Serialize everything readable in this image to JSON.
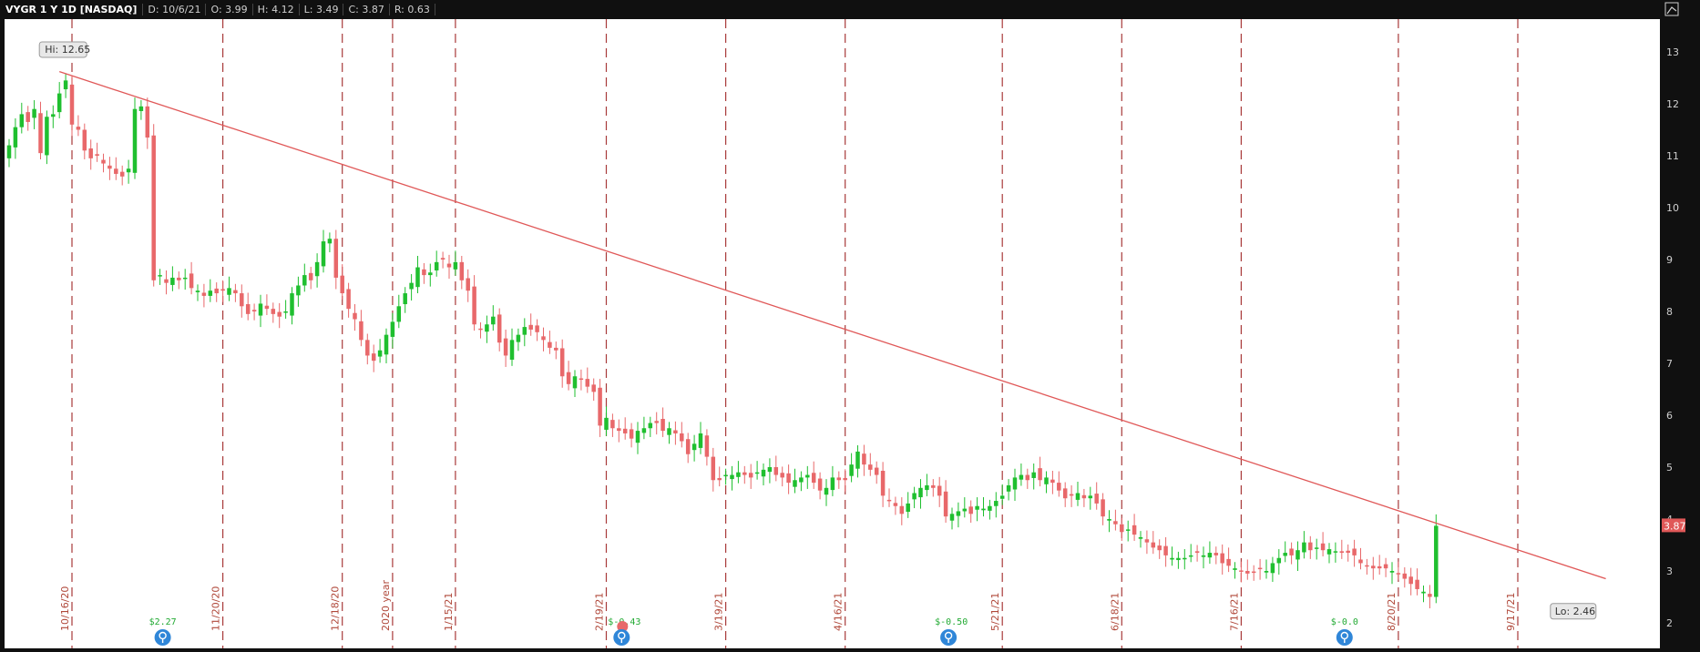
{
  "header": {
    "symbol": "VYGR 1 Y 1D [NASDAQ]",
    "date": "D: 10/6/21",
    "open": "O: 3.99",
    "high": "H: 4.12",
    "low": "L: 3.49",
    "close": "C: 3.87",
    "range": "R: 0.63"
  },
  "colors": {
    "up": "#1fbf2f",
    "down": "#e8686a",
    "trendline": "#e05858",
    "divider": "#a83a3a",
    "background": "#ffffff",
    "panel": "#101010"
  },
  "icons": [
    "chart-settings-icon",
    "earnings-bulb-icon",
    "dividend-icon"
  ],
  "chart_data": {
    "type": "candlestick",
    "ylim": [
      1.7,
      13.5
    ],
    "yticks": [
      2,
      3,
      4,
      5,
      6,
      7,
      8,
      9,
      10,
      11,
      12,
      13
    ],
    "xlabels": [
      {
        "label": "10/16/20",
        "index": 10
      },
      {
        "label": "11/20/20",
        "index": 34
      },
      {
        "label": "12/18/20",
        "index": 53
      },
      {
        "label": "2020 year",
        "index": 61
      },
      {
        "label": "1/15/21",
        "index": 71
      },
      {
        "label": "2/19/21",
        "index": 95
      },
      {
        "label": "3/19/21",
        "index": 114
      },
      {
        "label": "4/16/21",
        "index": 133
      },
      {
        "label": "5/21/21",
        "index": 158
      },
      {
        "label": "6/18/21",
        "index": 177
      },
      {
        "label": "7/16/21",
        "index": 196
      },
      {
        "label": "8/20/21",
        "index": 221
      },
      {
        "label": "9/17/21",
        "index": 240
      }
    ],
    "earnings": [
      {
        "label": "$2.27",
        "index": 24,
        "type": "eps"
      },
      {
        "label": "$-0.43",
        "index": 97,
        "type": "eps-dividend"
      },
      {
        "label": "$-0.50",
        "index": 149,
        "type": "eps"
      },
      {
        "label": "$-0.0",
        "index": 212,
        "type": "eps"
      }
    ],
    "hi_label": "Hi: 12.65",
    "lo_label": "Lo: 2.46",
    "last_price": "3.87",
    "trendline": {
      "start_index": 8,
      "start_value": 12.62,
      "end_index": 254,
      "end_value": 2.85
    },
    "closes": [
      11.2,
      11.55,
      11.8,
      11.65,
      11.9,
      11.05,
      11.75,
      11.8,
      12.2,
      12.45,
      11.6,
      11.5,
      11.1,
      10.95,
      11.0,
      10.85,
      10.75,
      10.65,
      10.6,
      10.75,
      11.9,
      11.95,
      11.35,
      8.6,
      8.7,
      8.55,
      8.65,
      8.6,
      8.65,
      8.45,
      8.4,
      8.3,
      8.4,
      8.35,
      8.4,
      8.45,
      8.35,
      8.1,
      7.95,
      8.0,
      8.15,
      8.05,
      7.95,
      7.9,
      8.0,
      8.35,
      8.5,
      8.7,
      8.6,
      8.95,
      9.35,
      9.4,
      8.65,
      8.35,
      8.05,
      7.85,
      7.45,
      7.15,
      7.05,
      7.25,
      7.55,
      7.8,
      8.1,
      8.35,
      8.55,
      8.85,
      8.7,
      8.75,
      8.95,
      9.0,
      8.85,
      8.95,
      8.6,
      8.4,
      7.75,
      7.65,
      7.75,
      7.9,
      7.4,
      7.15,
      7.45,
      7.55,
      7.7,
      7.65,
      7.6,
      7.45,
      7.3,
      7.25,
      6.75,
      6.6,
      6.75,
      6.7,
      6.55,
      6.45,
      5.8,
      5.95,
      5.75,
      5.7,
      5.65,
      5.55,
      5.7,
      5.75,
      5.85,
      5.85,
      5.7,
      5.75,
      5.65,
      5.5,
      5.25,
      5.45,
      5.65,
      5.2,
      4.75,
      4.75,
      4.85,
      4.85,
      4.9,
      4.85,
      4.8,
      4.9,
      4.95,
      5.0,
      4.85,
      4.8,
      4.7,
      4.75,
      4.8,
      4.85,
      4.7,
      4.55,
      4.6,
      4.8,
      4.75,
      4.75,
      5.05,
      5.3,
      5.05,
      4.95,
      4.85,
      4.45,
      4.35,
      4.25,
      4.1,
      4.3,
      4.5,
      4.6,
      4.65,
      4.6,
      4.45,
      4.05,
      4.1,
      4.15,
      4.2,
      4.1,
      4.25,
      4.2,
      4.25,
      4.35,
      4.45,
      4.65,
      4.8,
      4.85,
      4.75,
      4.9,
      4.75,
      4.8,
      4.7,
      4.55,
      4.4,
      4.45,
      4.5,
      4.4,
      4.45,
      4.3,
      4.05,
      4.0,
      3.9,
      3.75,
      3.8,
      3.7,
      3.65,
      3.55,
      3.45,
      3.4,
      3.3,
      3.25,
      3.25,
      3.25,
      3.3,
      3.35,
      3.3,
      3.35,
      3.3,
      3.15,
      3.1,
      3.05,
      3.0,
      2.95,
      2.98,
      3.05,
      3.0,
      3.15,
      3.25,
      3.35,
      3.3,
      3.4,
      3.55,
      3.4,
      3.45,
      3.4,
      3.42,
      3.38,
      3.35,
      3.35,
      3.3,
      3.15,
      3.1,
      3.05,
      3.05,
      3.05,
      3.0,
      2.95,
      2.85,
      2.75,
      2.65,
      2.6,
      2.5,
      3.87
    ]
  }
}
